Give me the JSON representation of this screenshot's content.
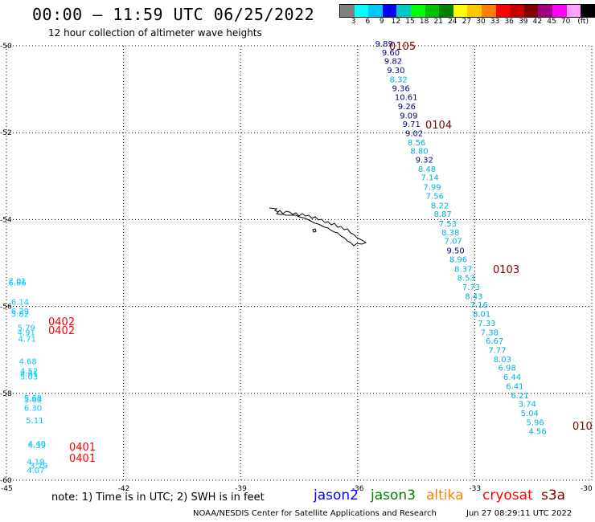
{
  "header": {
    "title": "00:00 – 11:59 UTC 06/25/2022",
    "subtitle": "12 hour collection of altimeter wave heights"
  },
  "colorbar": {
    "colors": [
      "#808080",
      "#00ffff",
      "#00c8ff",
      "#0000ff",
      "#00c8c8",
      "#00ff00",
      "#00c000",
      "#008000",
      "#ffff00",
      "#ffc800",
      "#ff8000",
      "#ff0000",
      "#c80000",
      "#800000",
      "#a00080",
      "#ff00ff",
      "#ffa0ff",
      "#000000"
    ],
    "labels": [
      "3",
      "6",
      "9",
      "12",
      "15",
      "18",
      "21",
      "24",
      "27",
      "30",
      "33",
      "36",
      "39",
      "42",
      "45",
      "70",
      "(ft)"
    ]
  },
  "map": {
    "lon_range": [
      -45,
      -30
    ],
    "lat_range": [
      -60,
      -50
    ],
    "lon_ticks": [
      "-45",
      "-42",
      "-39",
      "-36",
      "-33",
      "-30"
    ],
    "lat_ticks": [
      "-50",
      "-52",
      "-54",
      "-56",
      "-58",
      "-60"
    ],
    "grid": "dotted",
    "coastline": "South Georgia island"
  },
  "tracks": {
    "pass_0105": {
      "label": "0105",
      "label_color": "#800000",
      "points": [
        {
          "v": "9.89",
          "c": "#000080",
          "lon": -35.55,
          "lat": -50.02
        },
        {
          "v": "9.60",
          "c": "#000080",
          "lon": -35.38,
          "lat": -50.22
        },
        {
          "v": "9.82",
          "c": "#000080",
          "lon": -35.32,
          "lat": -50.42
        },
        {
          "v": "9.30",
          "c": "#000080",
          "lon": -35.25,
          "lat": -50.63
        },
        {
          "v": "8.32",
          "c": "#00b0e0",
          "lon": -35.18,
          "lat": -50.84
        },
        {
          "v": "9.36",
          "c": "#000080",
          "lon": -35.12,
          "lat": -51.04
        },
        {
          "v": "10.61",
          "c": "#000080",
          "lon": -35.05,
          "lat": -51.25
        },
        {
          "v": "9.26",
          "c": "#000080",
          "lon": -34.97,
          "lat": -51.46
        },
        {
          "v": "9.09",
          "c": "#000080",
          "lon": -34.92,
          "lat": -51.67
        },
        {
          "v": "9.71",
          "c": "#000080",
          "lon": -34.85,
          "lat": -51.87
        },
        {
          "v": "9.02",
          "c": "#000080",
          "lon": -34.78,
          "lat": -52.08
        }
      ]
    },
    "pass_0104": {
      "label": "0104",
      "label_color": "#800000",
      "points": [
        {
          "v": "8.56",
          "c": "#00b0e0",
          "lon": -34.72,
          "lat": -52.29
        },
        {
          "v": "8.80",
          "c": "#00b0e0",
          "lon": -34.65,
          "lat": -52.49
        },
        {
          "v": "9.32",
          "c": "#000080",
          "lon": -34.52,
          "lat": -52.69
        },
        {
          "v": "8.48",
          "c": "#00b0e0",
          "lon": -34.45,
          "lat": -52.9
        },
        {
          "v": "7.14",
          "c": "#00b0e0",
          "lon": -34.38,
          "lat": -53.1
        },
        {
          "v": "7.99",
          "c": "#00b0e0",
          "lon": -34.32,
          "lat": -53.32
        },
        {
          "v": "7.56",
          "c": "#00b0e0",
          "lon": -34.25,
          "lat": -53.52
        },
        {
          "v": "8.22",
          "c": "#00b0e0",
          "lon": -34.12,
          "lat": -53.74
        },
        {
          "v": "8.87",
          "c": "#00b0e0",
          "lon": -34.05,
          "lat": -53.94
        },
        {
          "v": "7.53",
          "c": "#00b0e0",
          "lon": -33.92,
          "lat": -54.16
        },
        {
          "v": "8.38",
          "c": "#00b0e0",
          "lon": -33.85,
          "lat": -54.36
        },
        {
          "v": "7.07",
          "c": "#00b0e0",
          "lon": -33.78,
          "lat": -54.56
        },
        {
          "v": "9.50",
          "c": "#000080",
          "lon": -33.72,
          "lat": -54.78
        },
        {
          "v": "8.96",
          "c": "#00b0e0",
          "lon": -33.65,
          "lat": -54.98
        }
      ]
    },
    "pass_0103": {
      "label": "0103",
      "label_color": "#800000",
      "points": [
        {
          "v": "8.37",
          "c": "#00b0e0",
          "lon": -33.52,
          "lat": -55.2
        },
        {
          "v": "8.53",
          "c": "#00b0e0",
          "lon": -33.45,
          "lat": -55.41
        },
        {
          "v": "7.73",
          "c": "#00b0e0",
          "lon": -33.32,
          "lat": -55.62
        },
        {
          "v": "8.43",
          "c": "#00b0e0",
          "lon": -33.25,
          "lat": -55.83
        },
        {
          "v": "7.16",
          "c": "#00b0e0",
          "lon": -33.12,
          "lat": -56.03
        },
        {
          "v": "8.01",
          "c": "#00b0e0",
          "lon": -33.05,
          "lat": -56.24
        },
        {
          "v": "7.33",
          "c": "#00b0e0",
          "lon": -32.92,
          "lat": -56.45
        },
        {
          "v": "7.38",
          "c": "#00b0e0",
          "lon": -32.85,
          "lat": -56.66
        },
        {
          "v": "6.67",
          "c": "#00b0e0",
          "lon": -32.72,
          "lat": -56.86
        },
        {
          "v": "7.77",
          "c": "#00b0e0",
          "lon": -32.65,
          "lat": -57.07
        },
        {
          "v": "8.03",
          "c": "#00b0e0",
          "lon": -32.52,
          "lat": -57.28
        },
        {
          "v": "6.98",
          "c": "#00b0e0",
          "lon": -32.4,
          "lat": -57.48
        },
        {
          "v": "6.44",
          "c": "#00b0e0",
          "lon": -32.27,
          "lat": -57.69
        },
        {
          "v": "6.41",
          "c": "#00b0e0",
          "lon": -32.2,
          "lat": -57.9
        },
        {
          "v": "6.21",
          "c": "#00b0e0",
          "lon": -32.07,
          "lat": -58.11
        },
        {
          "v": "3.74",
          "c": "#00b0e0",
          "lon": -31.88,
          "lat": -58.31
        },
        {
          "v": "5.04",
          "c": "#00b0e0",
          "lon": -31.82,
          "lat": -58.52
        },
        {
          "v": "5.96",
          "c": "#00b0e0",
          "lon": -31.68,
          "lat": -58.73
        },
        {
          "v": "4.56",
          "c": "#00b0e0",
          "lon": -31.62,
          "lat": -58.94
        }
      ]
    },
    "pass_010x_label": {
      "label": "010",
      "label_color": "#800000"
    },
    "pass_0402": {
      "label": "0402",
      "label_color": "#ff0000",
      "points": [
        {
          "v": "7.01",
          "c": "#00c8ff",
          "lon": -44.95,
          "lat": -55.48
        },
        {
          "v": "6.86",
          "c": "#00c8ff",
          "lon": -44.95,
          "lat": -55.52
        },
        {
          "v": "6.14",
          "c": "#00c8ff",
          "lon": -44.88,
          "lat": -55.96
        },
        {
          "v": "6.29",
          "c": "#00c8ff",
          "lon": -44.88,
          "lat": -56.17
        },
        {
          "v": "5.82",
          "c": "#00c8ff",
          "lon": -44.88,
          "lat": -56.24
        },
        {
          "v": "5.79",
          "c": "#00c8ff",
          "lon": -44.72,
          "lat": -56.55
        },
        {
          "v": "4.91",
          "c": "#00c8ff",
          "lon": -44.72,
          "lat": -56.66
        },
        {
          "v": "4.71",
          "c": "#00c8ff",
          "lon": -44.7,
          "lat": -56.81
        }
      ]
    },
    "pass_0402b": {
      "label": "0402",
      "label_color": "#ff0000"
    },
    "pass_0401": {
      "label": "0401",
      "label_color": "#ff0000",
      "points": [
        {
          "v": "4.68",
          "c": "#00c8ff",
          "lon": -44.68,
          "lat": -57.33
        },
        {
          "v": "4.52",
          "c": "#00c8ff",
          "lon": -44.65,
          "lat": -57.55
        },
        {
          "v": "4.61",
          "c": "#00c8ff",
          "lon": -44.65,
          "lat": -57.61
        },
        {
          "v": "5.03",
          "c": "#00c8ff",
          "lon": -44.65,
          "lat": -57.68
        },
        {
          "v": "5.68",
          "c": "#00c8ff",
          "lon": -44.55,
          "lat": -58.17
        },
        {
          "v": "5.63",
          "c": "#00c8ff",
          "lon": -44.55,
          "lat": -58.21
        },
        {
          "v": "6.30",
          "c": "#00c8ff",
          "lon": -44.55,
          "lat": -58.4
        },
        {
          "v": "5.11",
          "c": "#00c8ff",
          "lon": -44.5,
          "lat": -58.69
        },
        {
          "v": "4.40",
          "c": "#00c8ff",
          "lon": -44.45,
          "lat": -59.22
        },
        {
          "v": "4.39",
          "c": "#00c8ff",
          "lon": -44.45,
          "lat": -59.26
        },
        {
          "v": "4.19",
          "c": "#00c8ff",
          "lon": -44.48,
          "lat": -59.64
        },
        {
          "v": "3.79",
          "c": "#00c8ff",
          "lon": -44.4,
          "lat": -59.73
        },
        {
          "v": "4.07",
          "c": "#00c8ff",
          "lon": -44.48,
          "lat": -59.83
        }
      ]
    },
    "pass_0401b": {
      "label": "0401",
      "label_color": "#ff0000"
    }
  },
  "footer": {
    "note": "note:  1) Time is in UTC;  2) SWH is in feet",
    "satellites": [
      {
        "name": "jason2",
        "color": "#0000ff"
      },
      {
        "name": "jason3",
        "color": "#008000"
      },
      {
        "name": "altika",
        "color": "#ff8000"
      },
      {
        "name": "cryosat",
        "color": "#ff0000"
      },
      {
        "name": "s3a",
        "color": "#800000"
      }
    ],
    "credit": "NOAA/NESDIS Center for Satellite Applications and Research",
    "timestamp": "Jun 27 08:29:11 UTC 2022"
  }
}
